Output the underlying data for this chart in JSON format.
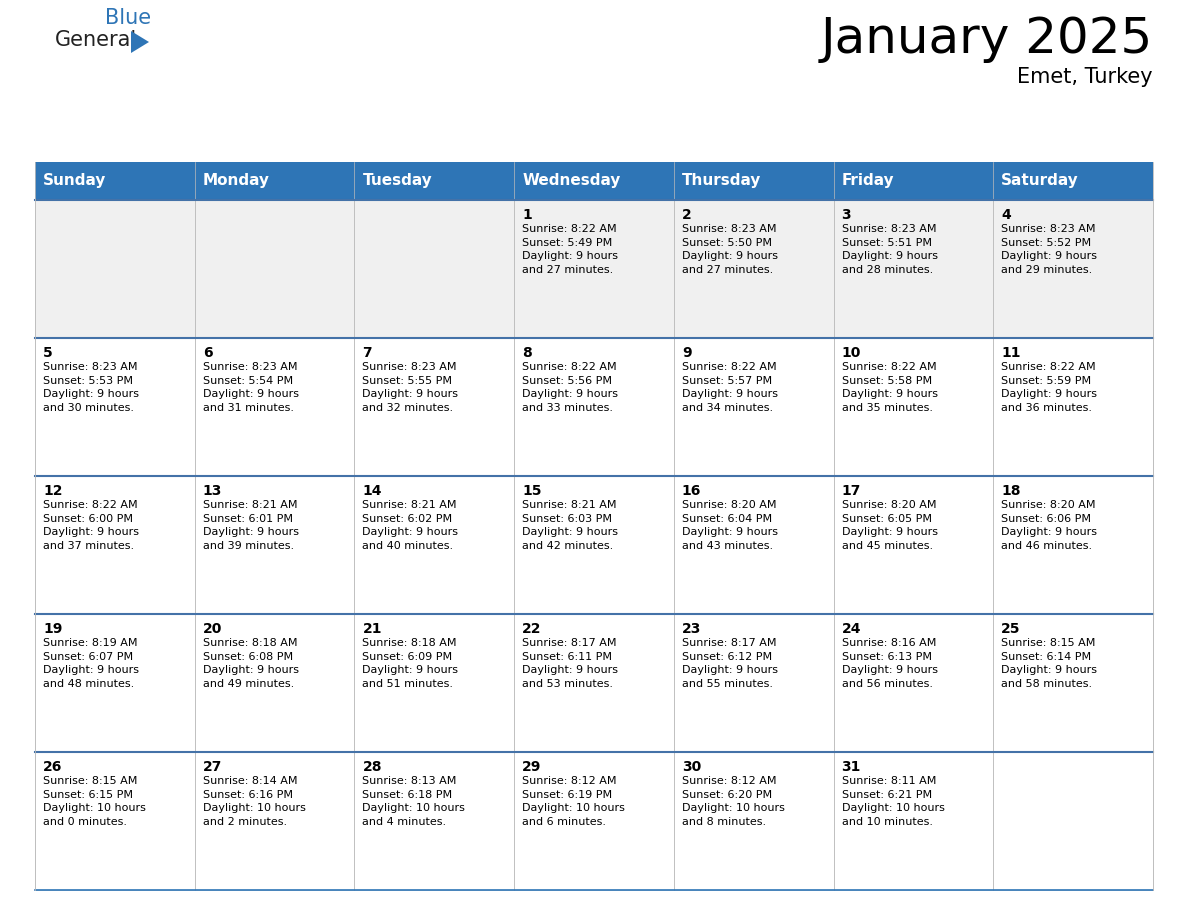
{
  "title": "January 2025",
  "subtitle": "Emet, Turkey",
  "header_color": "#2E75B6",
  "header_text_color": "#FFFFFF",
  "cell_bg_color": "#FFFFFF",
  "alt_cell_bg_color": "#F0F0F0",
  "border_color": "#2E75B6",
  "row_border_color": "#4472A8",
  "text_color": "#000000",
  "days_of_week": [
    "Sunday",
    "Monday",
    "Tuesday",
    "Wednesday",
    "Thursday",
    "Friday",
    "Saturday"
  ],
  "calendar_data": [
    [
      {
        "day": "",
        "info": ""
      },
      {
        "day": "",
        "info": ""
      },
      {
        "day": "",
        "info": ""
      },
      {
        "day": "1",
        "info": "Sunrise: 8:22 AM\nSunset: 5:49 PM\nDaylight: 9 hours\nand 27 minutes."
      },
      {
        "day": "2",
        "info": "Sunrise: 8:23 AM\nSunset: 5:50 PM\nDaylight: 9 hours\nand 27 minutes."
      },
      {
        "day": "3",
        "info": "Sunrise: 8:23 AM\nSunset: 5:51 PM\nDaylight: 9 hours\nand 28 minutes."
      },
      {
        "day": "4",
        "info": "Sunrise: 8:23 AM\nSunset: 5:52 PM\nDaylight: 9 hours\nand 29 minutes."
      }
    ],
    [
      {
        "day": "5",
        "info": "Sunrise: 8:23 AM\nSunset: 5:53 PM\nDaylight: 9 hours\nand 30 minutes."
      },
      {
        "day": "6",
        "info": "Sunrise: 8:23 AM\nSunset: 5:54 PM\nDaylight: 9 hours\nand 31 minutes."
      },
      {
        "day": "7",
        "info": "Sunrise: 8:23 AM\nSunset: 5:55 PM\nDaylight: 9 hours\nand 32 minutes."
      },
      {
        "day": "8",
        "info": "Sunrise: 8:22 AM\nSunset: 5:56 PM\nDaylight: 9 hours\nand 33 minutes."
      },
      {
        "day": "9",
        "info": "Sunrise: 8:22 AM\nSunset: 5:57 PM\nDaylight: 9 hours\nand 34 minutes."
      },
      {
        "day": "10",
        "info": "Sunrise: 8:22 AM\nSunset: 5:58 PM\nDaylight: 9 hours\nand 35 minutes."
      },
      {
        "day": "11",
        "info": "Sunrise: 8:22 AM\nSunset: 5:59 PM\nDaylight: 9 hours\nand 36 minutes."
      }
    ],
    [
      {
        "day": "12",
        "info": "Sunrise: 8:22 AM\nSunset: 6:00 PM\nDaylight: 9 hours\nand 37 minutes."
      },
      {
        "day": "13",
        "info": "Sunrise: 8:21 AM\nSunset: 6:01 PM\nDaylight: 9 hours\nand 39 minutes."
      },
      {
        "day": "14",
        "info": "Sunrise: 8:21 AM\nSunset: 6:02 PM\nDaylight: 9 hours\nand 40 minutes."
      },
      {
        "day": "15",
        "info": "Sunrise: 8:21 AM\nSunset: 6:03 PM\nDaylight: 9 hours\nand 42 minutes."
      },
      {
        "day": "16",
        "info": "Sunrise: 8:20 AM\nSunset: 6:04 PM\nDaylight: 9 hours\nand 43 minutes."
      },
      {
        "day": "17",
        "info": "Sunrise: 8:20 AM\nSunset: 6:05 PM\nDaylight: 9 hours\nand 45 minutes."
      },
      {
        "day": "18",
        "info": "Sunrise: 8:20 AM\nSunset: 6:06 PM\nDaylight: 9 hours\nand 46 minutes."
      }
    ],
    [
      {
        "day": "19",
        "info": "Sunrise: 8:19 AM\nSunset: 6:07 PM\nDaylight: 9 hours\nand 48 minutes."
      },
      {
        "day": "20",
        "info": "Sunrise: 8:18 AM\nSunset: 6:08 PM\nDaylight: 9 hours\nand 49 minutes."
      },
      {
        "day": "21",
        "info": "Sunrise: 8:18 AM\nSunset: 6:09 PM\nDaylight: 9 hours\nand 51 minutes."
      },
      {
        "day": "22",
        "info": "Sunrise: 8:17 AM\nSunset: 6:11 PM\nDaylight: 9 hours\nand 53 minutes."
      },
      {
        "day": "23",
        "info": "Sunrise: 8:17 AM\nSunset: 6:12 PM\nDaylight: 9 hours\nand 55 minutes."
      },
      {
        "day": "24",
        "info": "Sunrise: 8:16 AM\nSunset: 6:13 PM\nDaylight: 9 hours\nand 56 minutes."
      },
      {
        "day": "25",
        "info": "Sunrise: 8:15 AM\nSunset: 6:14 PM\nDaylight: 9 hours\nand 58 minutes."
      }
    ],
    [
      {
        "day": "26",
        "info": "Sunrise: 8:15 AM\nSunset: 6:15 PM\nDaylight: 10 hours\nand 0 minutes."
      },
      {
        "day": "27",
        "info": "Sunrise: 8:14 AM\nSunset: 6:16 PM\nDaylight: 10 hours\nand 2 minutes."
      },
      {
        "day": "28",
        "info": "Sunrise: 8:13 AM\nSunset: 6:18 PM\nDaylight: 10 hours\nand 4 minutes."
      },
      {
        "day": "29",
        "info": "Sunrise: 8:12 AM\nSunset: 6:19 PM\nDaylight: 10 hours\nand 6 minutes."
      },
      {
        "day": "30",
        "info": "Sunrise: 8:12 AM\nSunset: 6:20 PM\nDaylight: 10 hours\nand 8 minutes."
      },
      {
        "day": "31",
        "info": "Sunrise: 8:11 AM\nSunset: 6:21 PM\nDaylight: 10 hours\nand 10 minutes."
      },
      {
        "day": "",
        "info": ""
      }
    ]
  ],
  "logo_text_general": "General",
  "logo_text_blue": "Blue",
  "logo_color_general": "#222222",
  "logo_color_blue": "#2E75B6",
  "title_fontsize": 36,
  "subtitle_fontsize": 15,
  "header_fontsize": 11,
  "day_number_fontsize": 10,
  "info_fontsize": 8
}
